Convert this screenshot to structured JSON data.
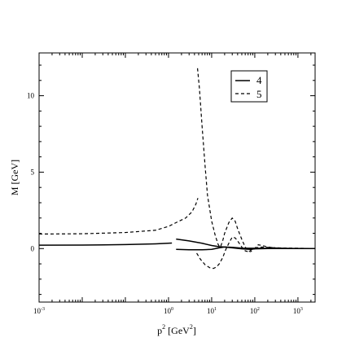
{
  "chart_data": {
    "type": "line",
    "xscale": "log",
    "xlim": [
      0.001,
      2500
    ],
    "ylim": [
      -3.5,
      12.8
    ],
    "xlabel": {
      "base": "p",
      "sup": "2",
      "unit_open": " [GeV",
      "unit_sup": "2",
      "unit_close": "]"
    },
    "ylabel": "M [GeV]",
    "grid": false,
    "legend_placement": "top-right",
    "x_ticks": [
      {
        "value": 0.001,
        "base": "10",
        "exp": "-3"
      },
      {
        "value": 1,
        "base": "10",
        "exp": "0"
      },
      {
        "value": 10,
        "base": "10",
        "exp": "1"
      },
      {
        "value": 100,
        "base": "10",
        "exp": "2"
      },
      {
        "value": 1000,
        "base": "10",
        "exp": "3"
      }
    ],
    "y_ticks": [
      {
        "value": 0,
        "label": "0"
      },
      {
        "value": 5,
        "label": "5"
      },
      {
        "value": 10,
        "label": "10"
      }
    ],
    "series": [
      {
        "name": "4",
        "dash": "solid",
        "segments": [
          [
            [
              0.001,
              0.22
            ],
            [
              0.01,
              0.23
            ],
            [
              0.1,
              0.26
            ],
            [
              0.5,
              0.31
            ],
            [
              1.2,
              0.36
            ]
          ],
          [
            [
              1.5,
              0.62
            ],
            [
              3,
              0.5
            ],
            [
              6,
              0.35
            ],
            [
              10,
              0.2
            ],
            [
              15,
              0.12
            ],
            [
              20,
              0.1
            ],
            [
              30,
              0.05
            ],
            [
              50,
              -0.02
            ],
            [
              80,
              -0.05
            ],
            [
              100,
              -0.02
            ],
            [
              200,
              0.0
            ],
            [
              500,
              0.0
            ],
            [
              2500,
              0.0
            ]
          ],
          [
            [
              1.5,
              -0.05
            ],
            [
              3,
              -0.08
            ],
            [
              6,
              -0.08
            ],
            [
              10,
              -0.05
            ],
            [
              15,
              0.05
            ],
            [
              20,
              0.1
            ],
            [
              30,
              0.08
            ],
            [
              50,
              0.03
            ],
            [
              100,
              0.02
            ],
            [
              2500,
              0.0
            ]
          ]
        ]
      },
      {
        "name": "5",
        "dash": "dashed",
        "segments": [
          [
            [
              0.001,
              0.95
            ],
            [
              0.01,
              0.97
            ],
            [
              0.1,
              1.05
            ],
            [
              0.5,
              1.2
            ],
            [
              1.0,
              1.45
            ],
            [
              1.5,
              1.7
            ],
            [
              2.5,
              2.0
            ],
            [
              3.5,
              2.4
            ],
            [
              4.3,
              2.9
            ],
            [
              4.8,
              3.3
            ]
          ],
          [
            [
              4.7,
              11.8
            ],
            [
              5.2,
              10.5
            ],
            [
              6,
              8.0
            ],
            [
              7,
              5.5
            ],
            [
              8,
              3.5
            ],
            [
              10,
              1.8
            ],
            [
              12,
              0.9
            ],
            [
              14,
              0.3
            ],
            [
              15,
              0.15
            ],
            [
              16,
              0.1
            ],
            [
              18,
              0.5
            ],
            [
              20,
              1.0
            ],
            [
              25,
              1.7
            ],
            [
              30,
              2.0
            ],
            [
              35,
              1.8
            ],
            [
              40,
              1.3
            ],
            [
              50,
              0.6
            ],
            [
              60,
              0.1
            ],
            [
              70,
              -0.15
            ],
            [
              80,
              -0.2
            ],
            [
              100,
              0.0
            ],
            [
              120,
              0.25
            ],
            [
              150,
              0.2
            ],
            [
              200,
              0.1
            ],
            [
              300,
              0.05
            ],
            [
              500,
              0.02
            ],
            [
              1000,
              0.0
            ],
            [
              2500,
              0.0
            ]
          ],
          [
            [
              4.5,
              -0.3
            ],
            [
              5.5,
              -0.7
            ],
            [
              7,
              -1.05
            ],
            [
              9,
              -1.25
            ],
            [
              11,
              -1.3
            ],
            [
              13,
              -1.2
            ],
            [
              15,
              -1.0
            ],
            [
              18,
              -0.6
            ],
            [
              21,
              -0.1
            ],
            [
              25,
              0.35
            ],
            [
              30,
              0.75
            ],
            [
              35,
              0.7
            ],
            [
              40,
              0.5
            ],
            [
              50,
              0.1
            ],
            [
              60,
              -0.15
            ],
            [
              70,
              -0.2
            ],
            [
              80,
              -0.1
            ],
            [
              100,
              0.05
            ],
            [
              150,
              0.1
            ],
            [
              300,
              0.05
            ],
            [
              2500,
              0.0
            ]
          ]
        ]
      }
    ]
  }
}
